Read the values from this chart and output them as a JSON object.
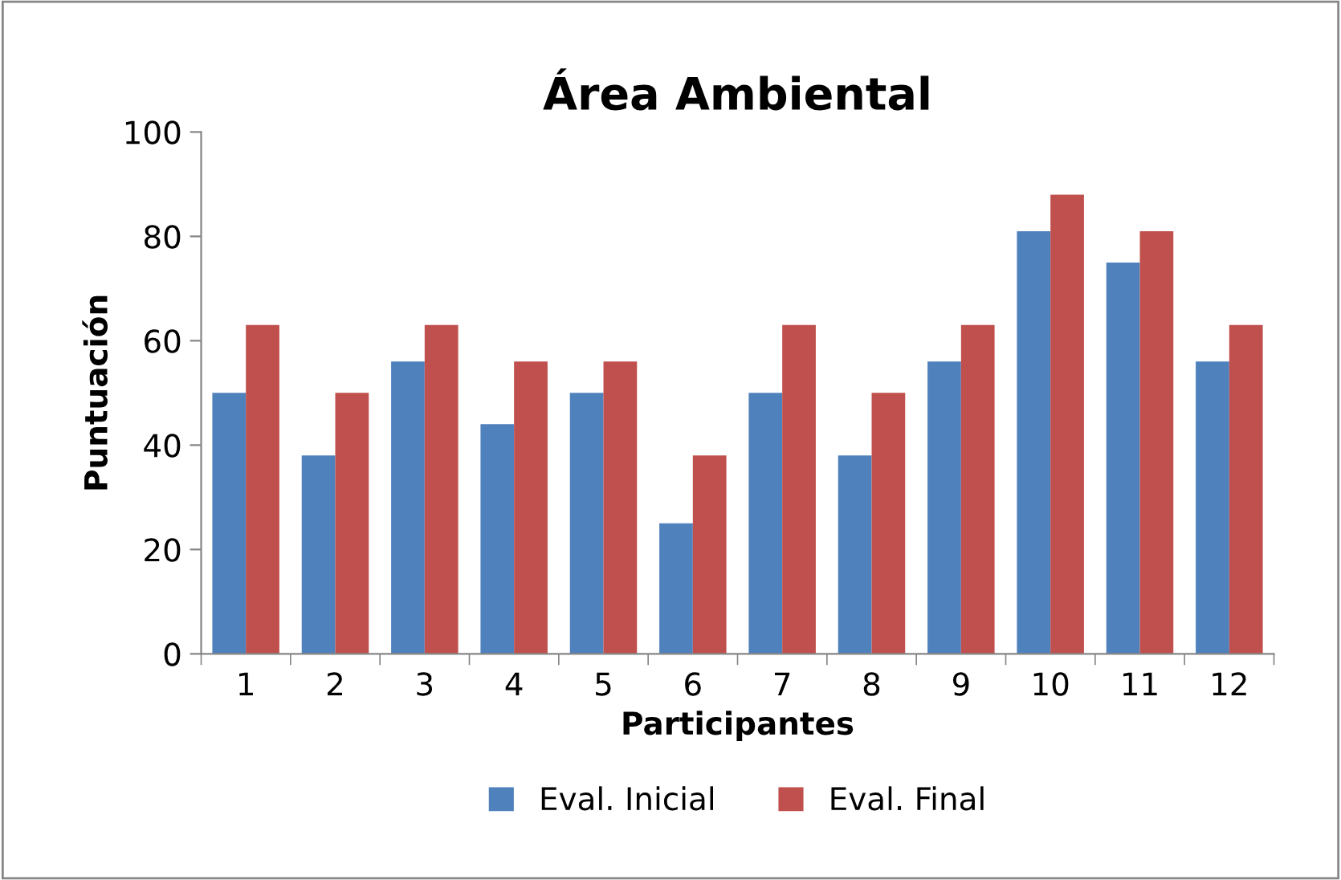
{
  "chart_data": {
    "type": "bar",
    "title": "Área Ambiental",
    "xlabel": "Participantes",
    "ylabel": "Puntuación",
    "categories": [
      "1",
      "2",
      "3",
      "4",
      "5",
      "6",
      "7",
      "8",
      "9",
      "10",
      "11",
      "12"
    ],
    "series": [
      {
        "name": "Eval. Inicial",
        "color": "#4f81bd",
        "values": [
          50,
          38,
          56,
          44,
          50,
          25,
          50,
          38,
          56,
          81,
          75,
          56
        ]
      },
      {
        "name": "Eval. Final",
        "color": "#c0504d",
        "values": [
          63,
          50,
          63,
          56,
          56,
          38,
          63,
          50,
          63,
          88,
          81,
          63
        ]
      }
    ],
    "ylim": [
      0,
      100
    ],
    "yticks": [
      0,
      20,
      40,
      60,
      80,
      100
    ],
    "grid": false,
    "legend": "bottom"
  }
}
